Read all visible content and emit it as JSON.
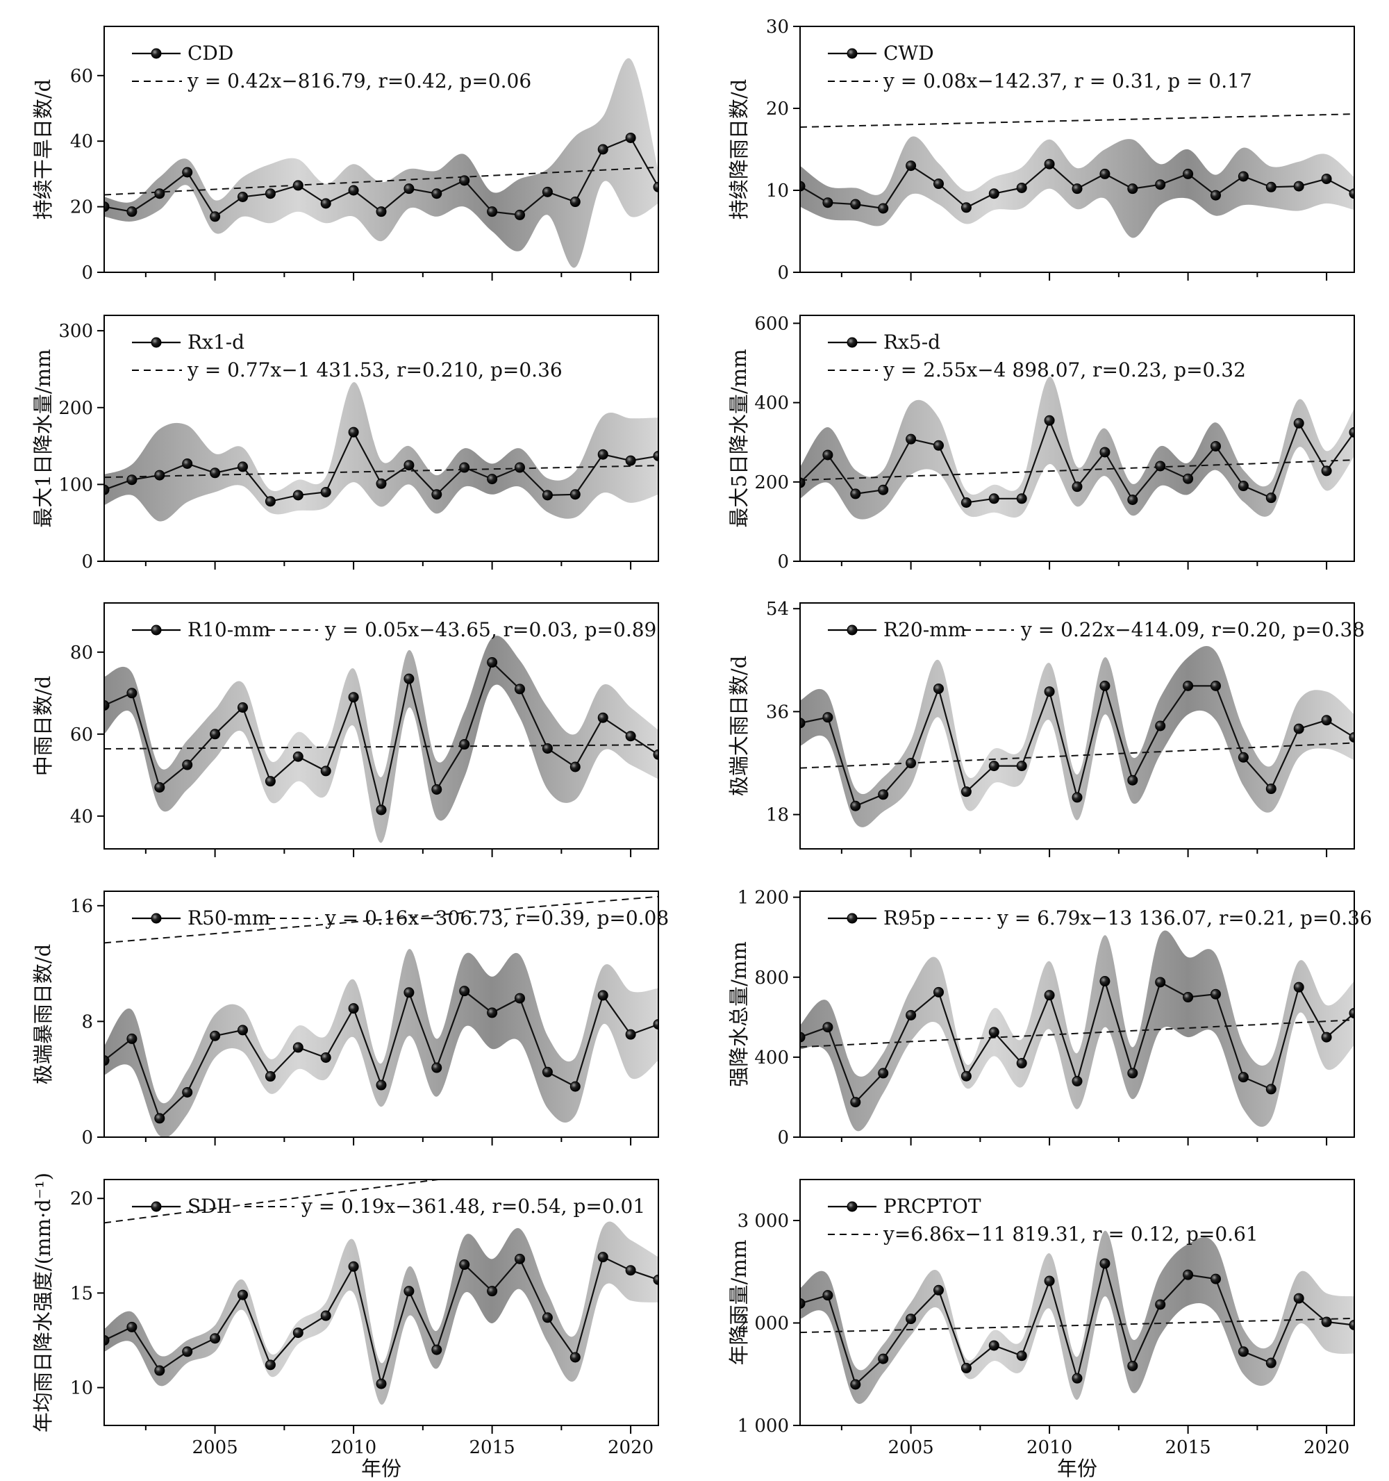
{
  "xaxis": {
    "ticks": [
      2005,
      2010,
      2015,
      2020
    ],
    "tick_labels": [
      "2005",
      "2010",
      "2015",
      "2020"
    ],
    "title": "年份",
    "range": [
      2001,
      2021
    ]
  },
  "years": [
    2001,
    2002,
    2003,
    2004,
    2005,
    2006,
    2007,
    2008,
    2009,
    2010,
    2011,
    2012,
    2013,
    2014,
    2015,
    2016,
    2017,
    2018,
    2019,
    2020,
    2021
  ],
  "colors": {
    "line": "#111111",
    "band_dark": "#8c8c8c",
    "band_light": "#d6d6d6"
  },
  "chart_data": [
    {
      "type": "line",
      "name": "CDD",
      "ylabel": "持续干旱日数/d",
      "equation": "y = 0.42x−816.79, r=0.42, p=0.06",
      "trend": {
        "slope": 0.42,
        "intercept": -816.79
      },
      "ylim": [
        0,
        75
      ],
      "yticks": [
        0,
        20,
        40,
        60
      ],
      "ytick_labels": [
        "0",
        "20",
        "40",
        "60"
      ],
      "values": [
        20,
        18.5,
        24,
        30.5,
        17,
        23,
        24,
        26.5,
        21,
        25,
        18.5,
        25.5,
        24,
        28,
        18.5,
        17.5,
        24.5,
        21.5,
        37.5,
        41,
        26
      ],
      "band": [
        3,
        3,
        5,
        4,
        5,
        6,
        9,
        8,
        6,
        8,
        9,
        6,
        7,
        8,
        6,
        11,
        7,
        20,
        10,
        24,
        5
      ]
    },
    {
      "type": "line",
      "name": "CWD",
      "ylabel": "持续降雨日数/d",
      "equation": "y = 0.08x−142.37, r = 0.31, p = 0.17",
      "trend": {
        "slope": 0.08,
        "intercept": -142.37
      },
      "ylim": [
        0,
        30
      ],
      "yticks": [
        0,
        10,
        20,
        30
      ],
      "ytick_labels": [
        "0",
        "10",
        "20",
        "30"
      ],
      "values": [
        10.5,
        8.5,
        8.3,
        7.8,
        13,
        10.8,
        7.9,
        9.6,
        10.3,
        13.2,
        10.2,
        12,
        10.2,
        10.7,
        12,
        9.4,
        11.7,
        10.4,
        10.5,
        11.4,
        9.6
      ],
      "band": [
        2.5,
        2,
        2,
        2,
        3.5,
        2.5,
        2,
        2,
        2.5,
        3,
        2.5,
        3,
        6,
        2.5,
        3,
        2.5,
        3.5,
        2.5,
        3,
        3,
        2
      ]
    },
    {
      "type": "line",
      "name": "Rx1-d",
      "ylabel": "最大1日降水量/mm",
      "equation": "y = 0.77x−1 431.53, r=0.210, p=0.36",
      "trend": {
        "slope": 0.77,
        "intercept": -1431.53
      },
      "ylim": [
        0,
        320
      ],
      "yticks": [
        0,
        100,
        200,
        300
      ],
      "ytick_labels": [
        "0",
        "100",
        "200",
        "300"
      ],
      "values": [
        93,
        106,
        112,
        127,
        115,
        123,
        78,
        86,
        90,
        168,
        101,
        125,
        87,
        122,
        107,
        122,
        86,
        87,
        139,
        131,
        137
      ],
      "band": [
        20,
        20,
        60,
        50,
        25,
        25,
        15,
        20,
        20,
        65,
        30,
        25,
        25,
        25,
        20,
        25,
        22,
        30,
        50,
        55,
        50
      ]
    },
    {
      "type": "line",
      "name": "Rx5-d",
      "ylabel": "最大5日降水量/mm",
      "equation": "y = 2.55x−4 898.07, r=0.23, p=0.32",
      "trend": {
        "slope": 2.55,
        "intercept": -4898.07
      },
      "ylim": [
        0,
        620
      ],
      "yticks": [
        0,
        200,
        400,
        600
      ],
      "ytick_labels": [
        "0",
        "200",
        "400",
        "600"
      ],
      "values": [
        198,
        268,
        170,
        180,
        308,
        292,
        148,
        158,
        158,
        355,
        188,
        275,
        155,
        240,
        208,
        290,
        190,
        160,
        348,
        228,
        325
      ],
      "band": [
        40,
        70,
        60,
        50,
        90,
        70,
        30,
        35,
        40,
        110,
        50,
        60,
        40,
        50,
        40,
        60,
        40,
        40,
        60,
        50,
        60
      ]
    },
    {
      "type": "line",
      "name": "R10-mm",
      "ylabel": "中雨日数/d",
      "equation": "y = 0.05x−43.65, r=0.03, p=0.89",
      "trend": {
        "slope": 0.05,
        "intercept": -43.65
      },
      "ylim": [
        32,
        92
      ],
      "yticks": [
        40,
        60,
        80
      ],
      "ytick_labels": [
        "40",
        "60",
        "80"
      ],
      "values": [
        67,
        70,
        47,
        52.5,
        60,
        66.5,
        48.5,
        54.5,
        51,
        69,
        41.5,
        73.5,
        46.5,
        57.5,
        77.5,
        71,
        56.5,
        52,
        64,
        59.5,
        55
      ],
      "band": [
        7,
        5,
        5,
        6,
        6,
        6,
        5,
        6,
        6,
        7,
        8,
        7,
        7,
        8,
        6,
        7,
        10,
        8,
        8,
        7,
        6
      ]
    },
    {
      "type": "line",
      "name": "R20-mm",
      "ylabel": "极端大雨日数/d",
      "equation": "y = 0.22x−414.09, r=0.20, p=0.38",
      "trend": {
        "slope": 0.22,
        "intercept": -414.09
      },
      "ylim": [
        12,
        55
      ],
      "yticks": [
        18,
        36,
        54
      ],
      "ytick_labels": [
        "18",
        "36",
        "54"
      ],
      "values": [
        34,
        35,
        19.5,
        21.5,
        27,
        40,
        22,
        26.5,
        26.5,
        39.5,
        21,
        40.5,
        24,
        33.5,
        40.5,
        40.5,
        28,
        22.5,
        33,
        34.5,
        31.5
      ],
      "band": [
        4,
        4,
        3,
        3,
        4,
        5,
        3,
        3,
        3,
        5,
        4,
        5,
        4,
        5,
        5,
        6,
        5,
        4,
        5,
        5,
        4
      ]
    },
    {
      "type": "line",
      "name": "R50-mm",
      "ylabel": "极端暴雨日数/d",
      "equation": "y = 0.16x−306.73, r=0.39, p=0.08",
      "trend": {
        "slope": 0.16,
        "intercept": -306.73
      },
      "ylim": [
        0,
        17
      ],
      "yticks": [
        0,
        8,
        16
      ],
      "ytick_labels": [
        "0",
        "8",
        "16"
      ],
      "values": [
        5.3,
        6.8,
        1.3,
        3.1,
        7,
        7.4,
        4.2,
        6.2,
        5.5,
        8.9,
        3.6,
        10,
        4.8,
        10.1,
        8.6,
        9.6,
        4.5,
        3.5,
        9.8,
        7.1,
        7.8
      ],
      "band": [
        1,
        2,
        1.2,
        1.5,
        1.5,
        1.5,
        1.2,
        1.5,
        1.5,
        2,
        1.5,
        3,
        2,
        2.5,
        2.5,
        3,
        2.5,
        2,
        2,
        3,
        2.5
      ]
    },
    {
      "type": "line",
      "name": "R95p",
      "ylabel": "强降水总量/mm",
      "equation": "y = 6.79x−13 136.07, r=0.21, p=0.36",
      "trend": {
        "slope": 6.79,
        "intercept": -13136.07
      },
      "ylim": [
        0,
        1230
      ],
      "yticks": [
        0,
        400,
        800,
        1200
      ],
      "ytick_labels": [
        "0",
        "400",
        "800",
        "1 200"
      ],
      "values": [
        500,
        550,
        175,
        320,
        610,
        725,
        305,
        525,
        370,
        710,
        280,
        780,
        320,
        775,
        700,
        715,
        300,
        240,
        750,
        500,
        620
      ],
      "band": [
        60,
        130,
        140,
        100,
        130,
        160,
        60,
        120,
        120,
        170,
        140,
        230,
        130,
        240,
        200,
        200,
        160,
        150,
        130,
        160,
        160
      ]
    },
    {
      "type": "line",
      "name": "SDII",
      "ylabel": "年均雨日降水强度/(mm·d⁻¹)",
      "equation": "y = 0.19x−361.48, r=0.54, p=0.01",
      "trend": {
        "slope": 0.19,
        "intercept": -361.48
      },
      "ylim": [
        8,
        21
      ],
      "yticks": [
        10,
        15,
        20
      ],
      "ytick_labels": [
        "10",
        "15",
        "20"
      ],
      "values": [
        12.5,
        13.2,
        10.9,
        11.9,
        12.6,
        14.9,
        11.2,
        12.9,
        13.8,
        16.4,
        10.2,
        15.1,
        12,
        16.5,
        15.1,
        16.8,
        13.7,
        11.6,
        16.9,
        16.2,
        15.7
      ],
      "band": [
        0.6,
        0.8,
        0.8,
        0.6,
        0.7,
        0.8,
        0.6,
        0.6,
        0.7,
        1.4,
        1.1,
        1.3,
        1,
        1.5,
        1.7,
        1.6,
        1.3,
        1.2,
        1.6,
        1.6,
        1.2
      ]
    },
    {
      "type": "line",
      "name": "PRCPTOT",
      "ylabel": "年降雨量/mm",
      "equation": "y=6.86x−11 819.31,  r = 0.12, p=0.61",
      "trend": {
        "slope": 6.86,
        "intercept": -11819.31
      },
      "ylim": [
        1000,
        3400
      ],
      "yticks": [
        1000,
        2000,
        3000
      ],
      "ytick_labels": [
        "1 000",
        "2 000",
        "3 000"
      ],
      "values": [
        2190,
        2270,
        1400,
        1650,
        2040,
        2320,
        1560,
        1780,
        1680,
        2410,
        1460,
        2580,
        1580,
        2180,
        2470,
        2430,
        1720,
        1610,
        2240,
        2010,
        1980
      ],
      "band": [
        150,
        200,
        170,
        140,
        160,
        180,
        90,
        150,
        150,
        270,
        210,
        320,
        260,
        300,
        300,
        330,
        220,
        180,
        250,
        280,
        280
      ]
    }
  ]
}
